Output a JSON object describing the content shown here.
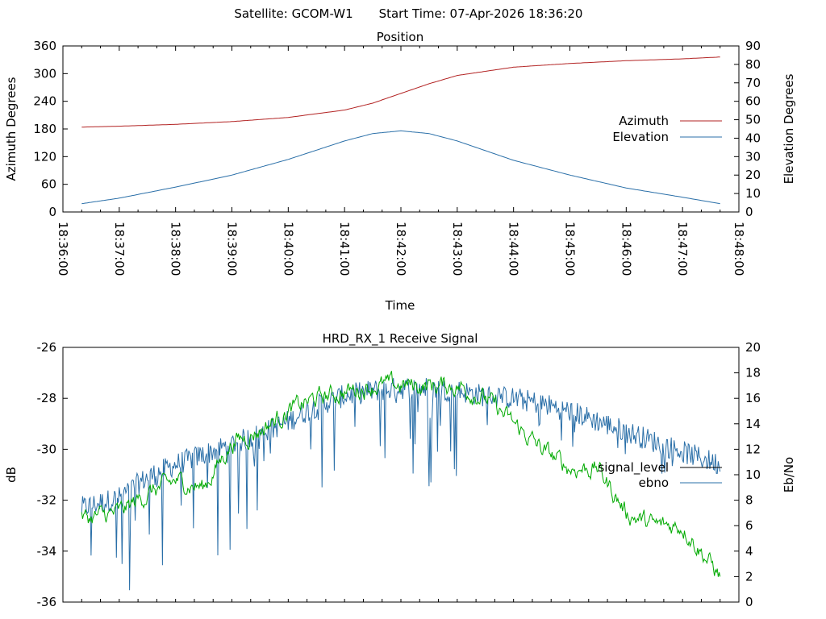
{
  "header": {
    "satellite": "Satellite: GCOM-W1",
    "start_time": "Start Time: 07-Apr-2026 18:36:20"
  },
  "colors": {
    "azimuth": "#b22222",
    "elevation": "#2a6fa8",
    "signal_legend": "#000000",
    "ebno_legend": "#2a6fa8",
    "signal_trace": "#2a6fa8",
    "ebno_trace": "#00aa00"
  },
  "chart_data": [
    {
      "type": "line",
      "title": "Position",
      "xlabel": "Time",
      "ylabel": "Azimuth Degrees",
      "y2label": "Elevation Degrees",
      "xlim": [
        "18:36:00",
        "18:48:00"
      ],
      "ylim": [
        0,
        360
      ],
      "y2lim": [
        0,
        90
      ],
      "x_ticks": [
        "18:36:00",
        "18:37:00",
        "18:38:00",
        "18:39:00",
        "18:40:00",
        "18:41:00",
        "18:42:00",
        "18:43:00",
        "18:44:00",
        "18:45:00",
        "18:46:00",
        "18:47:00",
        "18:48:00"
      ],
      "y_ticks": [
        "0",
        "60",
        "120",
        "180",
        "240",
        "300",
        "360"
      ],
      "y2_ticks": [
        "0",
        "10",
        "20",
        "30",
        "40",
        "50",
        "60",
        "70",
        "80",
        "90"
      ],
      "legend_position": "right",
      "grid": false,
      "series": [
        {
          "name": "Azimuth",
          "axis": "left",
          "x": [
            "18:36:20",
            "18:37:00",
            "18:38:00",
            "18:39:00",
            "18:40:00",
            "18:41:00",
            "18:41:30",
            "18:42:00",
            "18:42:30",
            "18:43:00",
            "18:44:00",
            "18:45:00",
            "18:46:00",
            "18:47:00",
            "18:47:40"
          ],
          "y": [
            184,
            186,
            190,
            196,
            205,
            221,
            236,
            257,
            278,
            296,
            314,
            322,
            328,
            332,
            336
          ]
        },
        {
          "name": "Elevation",
          "axis": "right",
          "x": [
            "18:36:20",
            "18:37:00",
            "18:38:00",
            "18:39:00",
            "18:40:00",
            "18:41:00",
            "18:41:30",
            "18:42:00",
            "18:42:30",
            "18:43:00",
            "18:44:00",
            "18:45:00",
            "18:46:00",
            "18:47:00",
            "18:47:40"
          ],
          "y": [
            4.5,
            7.5,
            13.5,
            20,
            28.5,
            38.5,
            42.5,
            44,
            42.5,
            38.5,
            28,
            20,
            13,
            8,
            4.5
          ]
        }
      ]
    },
    {
      "type": "line",
      "title": "HRD_RX_1 Receive Signal",
      "ylabel": "dB",
      "y2label": "Eb/No",
      "ylim": [
        -36,
        -26
      ],
      "y2lim": [
        0,
        20
      ],
      "y_ticks": [
        "-36",
        "-34",
        "-32",
        "-30",
        "-28",
        "-26"
      ],
      "y2_ticks": [
        "0",
        "2",
        "4",
        "6",
        "8",
        "10",
        "12",
        "14",
        "16",
        "18",
        "20"
      ],
      "x_minor_tick_count": 36,
      "legend_position": "right",
      "grid": false,
      "series": [
        {
          "name": "signal_level",
          "axis": "left",
          "x": [
            "18:36:20",
            "18:37:00",
            "18:37:30",
            "18:38:00",
            "18:38:30",
            "18:39:00",
            "18:39:30",
            "18:40:00",
            "18:40:30",
            "18:41:00",
            "18:41:30",
            "18:42:00",
            "18:42:30",
            "18:43:00",
            "18:43:30",
            "18:44:00",
            "18:44:30",
            "18:45:00",
            "18:45:30",
            "18:46:00",
            "18:46:30",
            "18:47:00",
            "18:47:40"
          ],
          "y": [
            -32.3,
            -31.9,
            -31.1,
            -30.6,
            -30.2,
            -29.8,
            -29.4,
            -28.9,
            -28.3,
            -27.9,
            -27.7,
            -27.6,
            -27.6,
            -27.7,
            -27.9,
            -28.0,
            -28.2,
            -28.5,
            -28.9,
            -29.3,
            -29.7,
            -30.1,
            -30.6
          ]
        },
        {
          "name": "ebno",
          "axis": "right",
          "x": [
            "18:36:20",
            "18:37:00",
            "18:37:30",
            "18:38:00",
            "18:38:30",
            "18:39:00",
            "18:39:30",
            "18:40:00",
            "18:40:30",
            "18:41:00",
            "18:41:30",
            "18:42:00",
            "18:42:30",
            "18:43:00",
            "18:43:30",
            "18:44:00",
            "18:44:30",
            "18:45:00",
            "18:45:30",
            "18:46:00",
            "18:46:30",
            "18:47:00",
            "18:47:40"
          ],
          "y": [
            6.5,
            7,
            8.5,
            9.5,
            9,
            12.5,
            13.5,
            15,
            16,
            16.5,
            17,
            17,
            17,
            17,
            16,
            14,
            12,
            10.5,
            10.5,
            7,
            6,
            6,
            2
          ]
        }
      ]
    }
  ]
}
